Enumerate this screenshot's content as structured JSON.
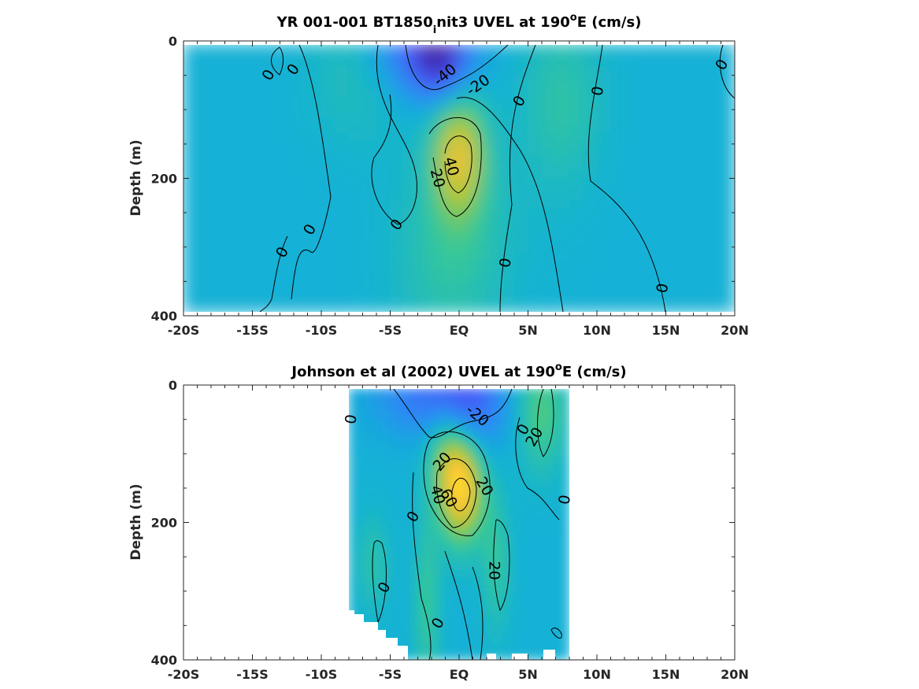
{
  "chart_data": [
    {
      "type": "heatmap",
      "title_main": "YR 001-001 BT1850",
      "title_sub": "i",
      "title_after_sub": "nit3 UVEL at 190",
      "title_sup": "o",
      "title_end": "E (cm/s)",
      "xlabel": "",
      "ylabel": "Depth (m)",
      "xlim": [
        -20,
        20
      ],
      "ylim": [
        0,
        400
      ],
      "y_reversed": true,
      "colormap": "parula",
      "clim": [
        -60,
        80
      ],
      "x_ticks": [
        {
          "value": -20,
          "label": "-20S"
        },
        {
          "value": -15,
          "label": "-15S"
        },
        {
          "value": -10,
          "label": "-10S"
        },
        {
          "value": -5,
          "label": "-5S"
        },
        {
          "value": 0,
          "label": "EQ"
        },
        {
          "value": 5,
          "label": "5N"
        },
        {
          "value": 10,
          "label": "10N"
        },
        {
          "value": 15,
          "label": "15N"
        },
        {
          "value": 20,
          "label": "20N"
        }
      ],
      "y_ticks": [
        {
          "value": 0,
          "label": "0"
        },
        {
          "value": 200,
          "label": "200"
        },
        {
          "value": 400,
          "label": "400"
        }
      ],
      "data_extent": {
        "x": [
          -20,
          20
        ],
        "y": [
          5,
          395
        ]
      },
      "features": [
        {
          "x": 0.0,
          "y": 165,
          "value": 52,
          "sx": 1.3,
          "sy": 62
        },
        {
          "x": -2.5,
          "y": 10,
          "value": -42,
          "sx": 2.4,
          "sy": 50
        },
        {
          "x": -1.2,
          "y": 30,
          "value": -30,
          "sx": 1.2,
          "sy": 40
        },
        {
          "x": 7.5,
          "y": 90,
          "value": 15,
          "sx": 2.0,
          "sy": 90
        },
        {
          "x": -8.0,
          "y": 50,
          "value": 9,
          "sx": 2.0,
          "sy": 70
        },
        {
          "x": -5.0,
          "y": 40,
          "value": 5,
          "sx": 1.5,
          "sy": 80
        },
        {
          "x": -1.0,
          "y": 330,
          "value": 10,
          "sx": 2.5,
          "sy": 90
        },
        {
          "x": 0.5,
          "y": 280,
          "value": 8,
          "sx": 3.0,
          "sy": 90
        }
      ],
      "contour_labels": [
        {
          "x": -13.8,
          "y": 50,
          "text": "0",
          "rot": -60
        },
        {
          "x": -12.0,
          "y": 42,
          "text": "0",
          "rot": -55
        },
        {
          "x": -1.0,
          "y": 50,
          "text": "-40",
          "rot": -40
        },
        {
          "x": 1.4,
          "y": 65,
          "text": "-20",
          "rot": -35
        },
        {
          "x": 4.4,
          "y": 88,
          "text": "0",
          "rot": -60
        },
        {
          "x": 10.1,
          "y": 73,
          "text": "0",
          "rot": -80
        },
        {
          "x": 19.1,
          "y": 35,
          "text": "0",
          "rot": -60
        },
        {
          "x": -0.6,
          "y": 183,
          "text": "40",
          "rot": 75
        },
        {
          "x": -1.6,
          "y": 200,
          "text": "20",
          "rot": 75
        },
        {
          "x": -4.5,
          "y": 268,
          "text": "0",
          "rot": -55
        },
        {
          "x": -10.8,
          "y": 275,
          "text": "0",
          "rot": -60
        },
        {
          "x": -12.8,
          "y": 308,
          "text": "0",
          "rot": -60
        },
        {
          "x": 3.4,
          "y": 323,
          "text": "0",
          "rot": -80
        },
        {
          "x": 14.8,
          "y": 360,
          "text": "0",
          "rot": -80
        }
      ]
    },
    {
      "type": "heatmap",
      "title_main": "Johnson et al (2002) UVEL at 190",
      "title_sup": "o",
      "title_end": "E (cm/s)",
      "xlabel": "",
      "ylabel": "Depth (m)",
      "xlim": [
        -20,
        20
      ],
      "ylim": [
        0,
        400
      ],
      "y_reversed": true,
      "colormap": "parula",
      "clim": [
        -60,
        80
      ],
      "x_ticks": [
        {
          "value": -20,
          "label": "-20S"
        },
        {
          "value": -15,
          "label": "-15S"
        },
        {
          "value": -10,
          "label": "-10S"
        },
        {
          "value": -5,
          "label": "-5S"
        },
        {
          "value": 0,
          "label": "EQ"
        },
        {
          "value": 5,
          "label": "5N"
        },
        {
          "value": 10,
          "label": "10N"
        },
        {
          "value": 15,
          "label": "15N"
        },
        {
          "value": 20,
          "label": "20N"
        }
      ],
      "y_ticks": [
        {
          "value": 0,
          "label": "0"
        },
        {
          "value": 200,
          "label": "200"
        },
        {
          "value": 400,
          "label": "400"
        }
      ],
      "data_extent": {
        "x": [
          -8,
          8
        ],
        "y": [
          5,
          400
        ]
      },
      "features": [
        {
          "x": 0.2,
          "y": 150,
          "value": 65,
          "sx": 1.1,
          "sy": 55
        },
        {
          "x": 0.5,
          "y": 20,
          "value": -35,
          "sx": 2.0,
          "sy": 55
        },
        {
          "x": -3.0,
          "y": 15,
          "value": -20,
          "sx": 2.5,
          "sy": 40
        },
        {
          "x": 6.0,
          "y": 40,
          "value": 25,
          "sx": 1.2,
          "sy": 60
        },
        {
          "x": 2.7,
          "y": 260,
          "value": 18,
          "sx": 0.7,
          "sy": 70
        },
        {
          "x": -2.3,
          "y": 320,
          "value": 20,
          "sx": 0.6,
          "sy": 90
        },
        {
          "x": -6.2,
          "y": 260,
          "value": 14,
          "sx": 0.8,
          "sy": 50
        },
        {
          "x": -1.0,
          "y": 90,
          "value": 25,
          "sx": 1.0,
          "sy": 50
        }
      ],
      "contour_labels": [
        {
          "x": -7.8,
          "y": 50,
          "text": "0",
          "rot": -80
        },
        {
          "x": 1.3,
          "y": 45,
          "text": "-20",
          "rot": 40
        },
        {
          "x": -1.2,
          "y": 112,
          "text": "20",
          "rot": -50
        },
        {
          "x": 1.8,
          "y": 148,
          "text": "20",
          "rot": 60
        },
        {
          "x": -1.6,
          "y": 160,
          "text": "40",
          "rot": 75
        },
        {
          "x": -0.8,
          "y": 165,
          "text": "60",
          "rot": 60
        },
        {
          "x": 4.7,
          "y": 65,
          "text": "0",
          "rot": -60
        },
        {
          "x": 5.5,
          "y": 76,
          "text": "20",
          "rot": -60
        },
        {
          "x": 7.7,
          "y": 167,
          "text": "0",
          "rot": -80
        },
        {
          "x": -3.3,
          "y": 192,
          "text": "0",
          "rot": -60
        },
        {
          "x": 2.5,
          "y": 270,
          "text": "20",
          "rot": 90
        },
        {
          "x": -5.4,
          "y": 295,
          "text": "0",
          "rot": -60
        },
        {
          "x": -1.5,
          "y": 347,
          "text": "0",
          "rot": -60
        }
      ]
    }
  ]
}
